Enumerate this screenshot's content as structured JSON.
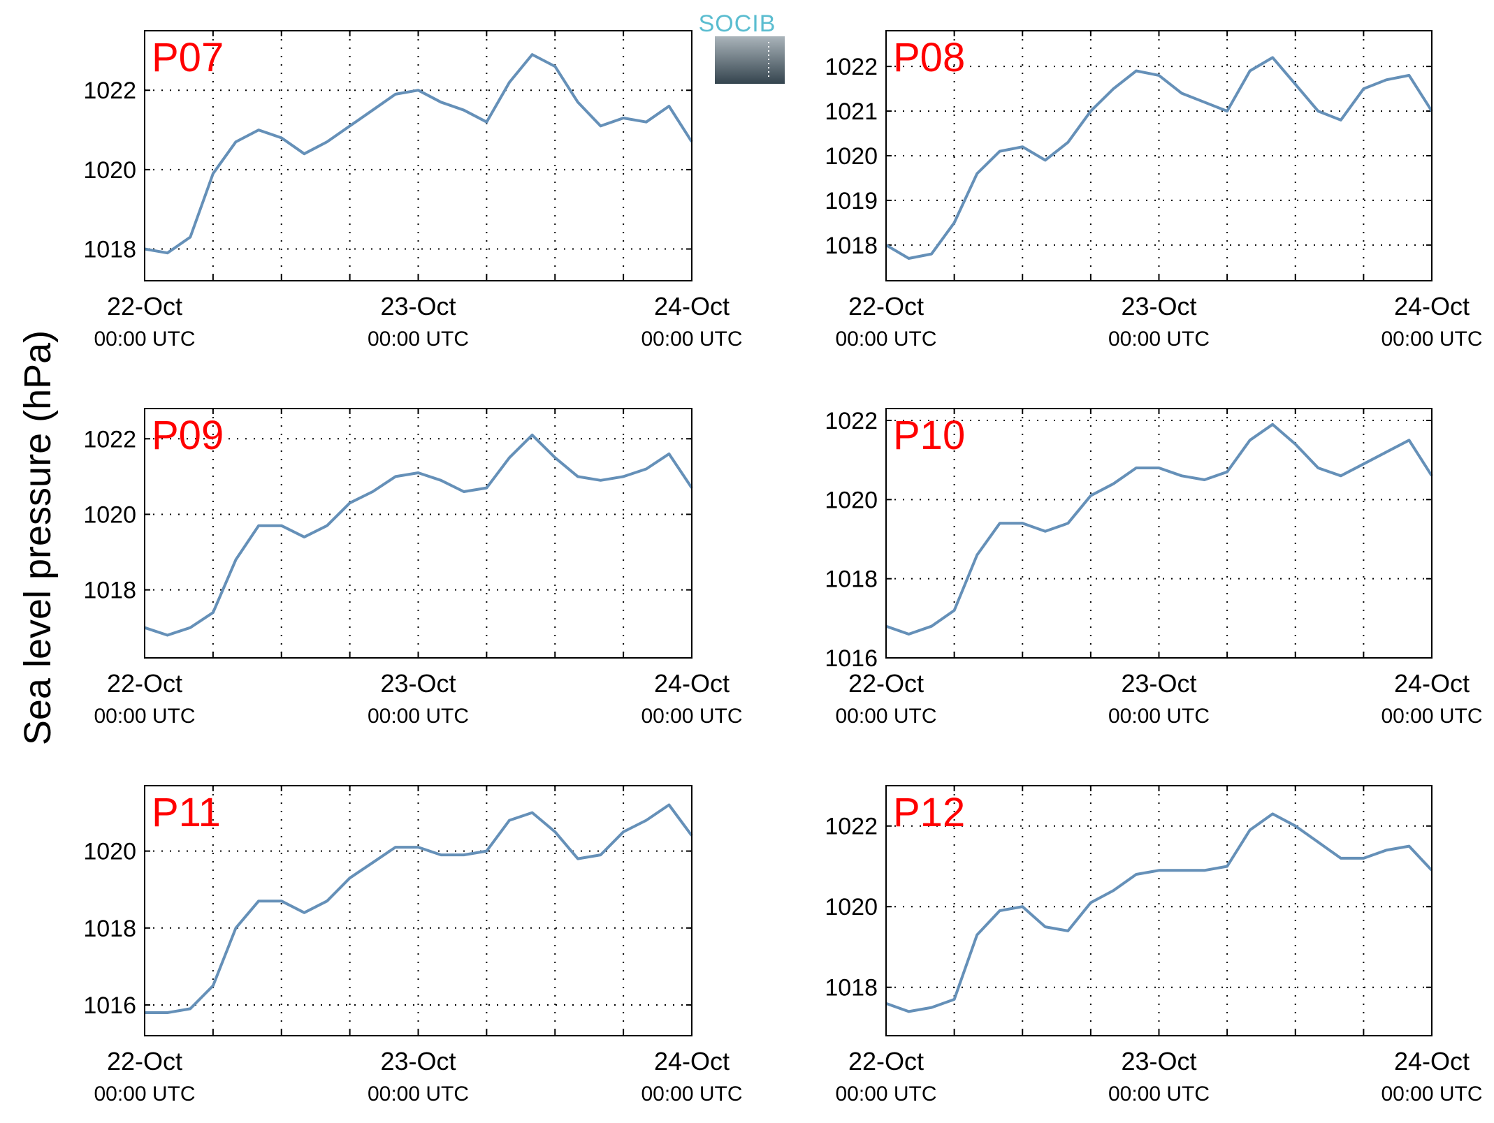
{
  "figure": {
    "ylabel": "Sea level pressure (hPa)",
    "logo_text": "SOCIB",
    "colors": {
      "line": "#6590b8",
      "label": "#ff0000",
      "grid": "#000000",
      "logo_text": "#5bbdd0",
      "logo_top": "#aab4ba",
      "logo_bottom": "#34444e"
    }
  },
  "chart_data": [
    {
      "type": "line",
      "title": "P07",
      "categories": [
        "22-Oct",
        "23-Oct",
        "24-Oct"
      ],
      "time_label": "00:00 UTC",
      "x": [
        0,
        2,
        4,
        6,
        8,
        10,
        12,
        14,
        16,
        18,
        20,
        22,
        24,
        26,
        28,
        30,
        32,
        34,
        36,
        38,
        40,
        42,
        44,
        46,
        48
      ],
      "values": [
        1018.0,
        1017.9,
        1018.3,
        1019.9,
        1020.7,
        1021.0,
        1020.8,
        1020.4,
        1020.7,
        1021.1,
        1021.5,
        1021.9,
        1022.0,
        1021.7,
        1021.5,
        1021.2,
        1022.2,
        1022.9,
        1022.6,
        1021.7,
        1021.1,
        1021.3,
        1021.2,
        1021.6,
        1020.7
      ],
      "yticks": [
        1018,
        1020,
        1022
      ],
      "ylim": [
        1017.2,
        1023.5
      ],
      "grid": true
    },
    {
      "type": "line",
      "title": "P08",
      "categories": [
        "22-Oct",
        "23-Oct",
        "24-Oct"
      ],
      "time_label": "00:00 UTC",
      "x": [
        0,
        2,
        4,
        6,
        8,
        10,
        12,
        14,
        16,
        18,
        20,
        22,
        24,
        26,
        28,
        30,
        32,
        34,
        36,
        38,
        40,
        42,
        44,
        46,
        48
      ],
      "values": [
        1018.0,
        1017.7,
        1017.8,
        1018.5,
        1019.6,
        1020.1,
        1020.2,
        1019.9,
        1020.3,
        1021.0,
        1021.5,
        1021.9,
        1021.8,
        1021.4,
        1021.2,
        1021.0,
        1021.9,
        1022.2,
        1021.6,
        1021.0,
        1020.8,
        1021.5,
        1021.7,
        1021.8,
        1021.0
      ],
      "yticks": [
        1018,
        1019,
        1020,
        1021,
        1022
      ],
      "ylim": [
        1017.2,
        1022.8
      ],
      "grid": true
    },
    {
      "type": "line",
      "title": "P09",
      "categories": [
        "22-Oct",
        "23-Oct",
        "24-Oct"
      ],
      "time_label": "00:00 UTC",
      "x": [
        0,
        2,
        4,
        6,
        8,
        10,
        12,
        14,
        16,
        18,
        20,
        22,
        24,
        26,
        28,
        30,
        32,
        34,
        36,
        38,
        40,
        42,
        44,
        46,
        48
      ],
      "values": [
        1017.0,
        1016.8,
        1017.0,
        1017.4,
        1018.8,
        1019.7,
        1019.7,
        1019.4,
        1019.7,
        1020.3,
        1020.6,
        1021.0,
        1021.1,
        1020.9,
        1020.6,
        1020.7,
        1021.5,
        1022.1,
        1021.5,
        1021.0,
        1020.9,
        1021.0,
        1021.2,
        1021.6,
        1020.7
      ],
      "yticks": [
        1018,
        1020,
        1022
      ],
      "ylim": [
        1016.2,
        1022.8
      ],
      "grid": true
    },
    {
      "type": "line",
      "title": "P10",
      "categories": [
        "22-Oct",
        "23-Oct",
        "24-Oct"
      ],
      "time_label": "00:00 UTC",
      "x": [
        0,
        2,
        4,
        6,
        8,
        10,
        12,
        14,
        16,
        18,
        20,
        22,
        24,
        26,
        28,
        30,
        32,
        34,
        36,
        38,
        40,
        42,
        44,
        46,
        48
      ],
      "values": [
        1016.8,
        1016.6,
        1016.8,
        1017.2,
        1018.6,
        1019.4,
        1019.4,
        1019.2,
        1019.4,
        1020.1,
        1020.4,
        1020.8,
        1020.8,
        1020.6,
        1020.5,
        1020.7,
        1021.5,
        1021.9,
        1021.4,
        1020.8,
        1020.6,
        1020.9,
        1021.2,
        1021.5,
        1020.6
      ],
      "yticks": [
        1016,
        1018,
        1020,
        1022
      ],
      "ylim": [
        1016,
        1022.3
      ],
      "grid": true
    },
    {
      "type": "line",
      "title": "P11",
      "categories": [
        "22-Oct",
        "23-Oct",
        "24-Oct"
      ],
      "time_label": "00:00 UTC",
      "x": [
        0,
        2,
        4,
        6,
        8,
        10,
        12,
        14,
        16,
        18,
        20,
        22,
        24,
        26,
        28,
        30,
        32,
        34,
        36,
        38,
        40,
        42,
        44,
        46,
        48
      ],
      "values": [
        1015.8,
        1015.8,
        1015.9,
        1016.5,
        1018.0,
        1018.7,
        1018.7,
        1018.4,
        1018.7,
        1019.3,
        1019.7,
        1020.1,
        1020.1,
        1019.9,
        1019.9,
        1020.0,
        1020.8,
        1021.0,
        1020.5,
        1019.8,
        1019.9,
        1020.5,
        1020.8,
        1021.2,
        1020.4
      ],
      "yticks": [
        1016,
        1018,
        1020
      ],
      "ylim": [
        1015.2,
        1021.7
      ],
      "grid": true
    },
    {
      "type": "line",
      "title": "P12",
      "categories": [
        "22-Oct",
        "23-Oct",
        "24-Oct"
      ],
      "time_label": "00:00 UTC",
      "x": [
        0,
        2,
        4,
        6,
        8,
        10,
        12,
        14,
        16,
        18,
        20,
        22,
        24,
        26,
        28,
        30,
        32,
        34,
        36,
        38,
        40,
        42,
        44,
        46,
        48
      ],
      "values": [
        1017.6,
        1017.4,
        1017.5,
        1017.7,
        1019.3,
        1019.9,
        1020.0,
        1019.5,
        1019.4,
        1020.1,
        1020.4,
        1020.8,
        1020.9,
        1020.9,
        1020.9,
        1021.0,
        1021.9,
        1022.3,
        1022.0,
        1021.6,
        1021.2,
        1021.2,
        1021.4,
        1021.5,
        1020.9
      ],
      "yticks": [
        1018,
        1020,
        1022
      ],
      "ylim": [
        1016.8,
        1023
      ],
      "grid": true
    }
  ]
}
